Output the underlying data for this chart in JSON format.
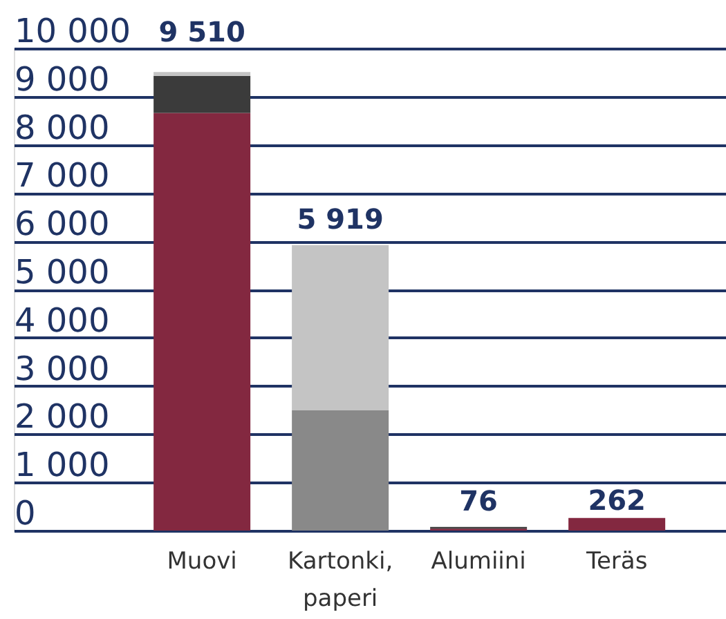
{
  "chart_data": {
    "type": "bar",
    "stacked": true,
    "categories": [
      "Muovi",
      "Kartonki, paperi",
      "Alumiini",
      "Teräs"
    ],
    "series": [
      {
        "color": "#832840",
        "values": [
          8660,
          null,
          40,
          262
        ]
      },
      {
        "color": "#898989",
        "values": [
          null,
          2500,
          null,
          null
        ]
      },
      {
        "color": "#3b3b3b",
        "values": [
          770,
          null,
          36,
          null
        ]
      },
      {
        "color": "#c4c4c4",
        "values": [
          80,
          3420,
          null,
          null
        ]
      }
    ],
    "ylim": [
      0,
      10000
    ],
    "yticks": [
      0,
      {
        "value": 1000,
        "label": "1 000"
      },
      {
        "value": 2000,
        "label": "2 000"
      },
      {
        "value": 3000,
        "label": "3 000"
      },
      {
        "value": 4000,
        "label": "4 000"
      },
      {
        "value": 5000,
        "label": "5 000"
      },
      {
        "value": 6000,
        "label": "6 000"
      },
      {
        "value": 7000,
        "label": "7 000"
      },
      {
        "value": 8000,
        "label": "8 000"
      },
      {
        "value": 9000,
        "label": "9 000"
      },
      {
        "value": 10000,
        "label": "10 000"
      }
    ],
    "grid": "y",
    "totals": [
      "9 510",
      "5 919",
      "76",
      "262"
    ]
  }
}
